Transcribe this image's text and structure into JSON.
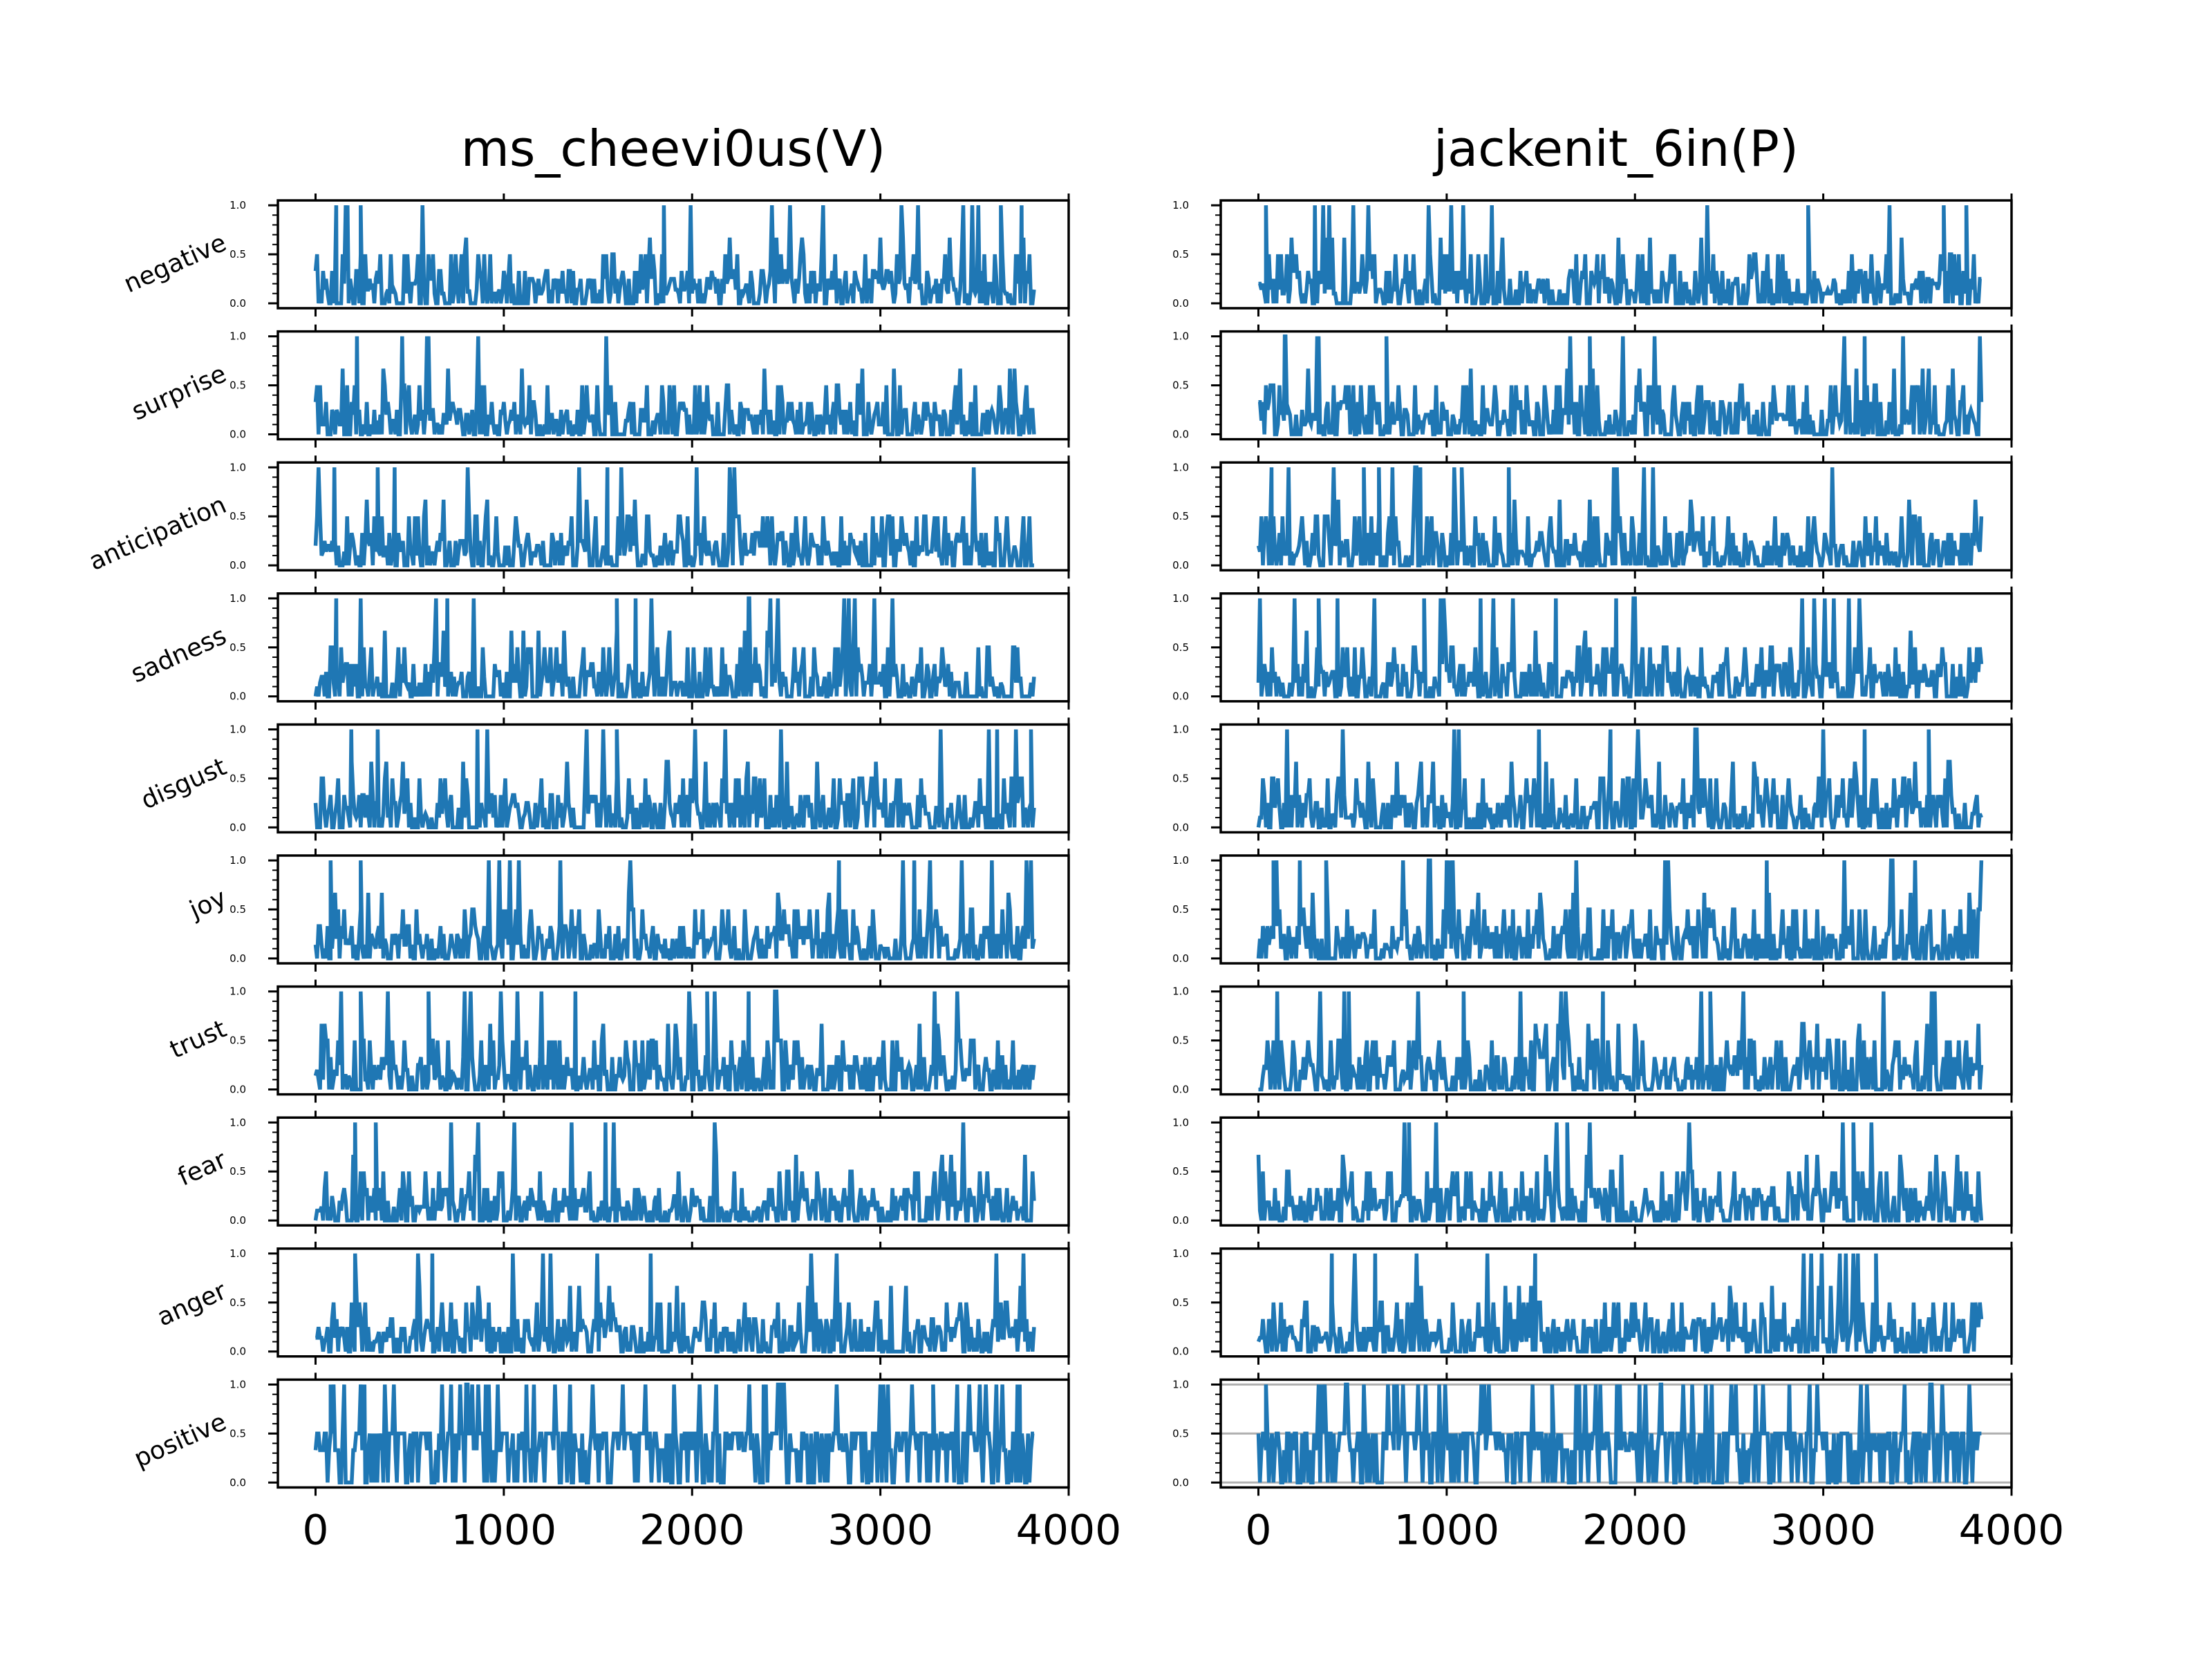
{
  "chart_data": {
    "type": "line",
    "emotions": [
      "negative",
      "surprise",
      "anticipation",
      "sadness",
      "disgust",
      "joy",
      "trust",
      "fear",
      "anger",
      "positive"
    ],
    "ytick_labels": [
      "0.0",
      "0.5",
      "1.0"
    ],
    "xtick_labels": [
      "0",
      "1000",
      "2000",
      "3000",
      "4000"
    ],
    "xlim": [
      -200,
      4000
    ],
    "ylim": [
      -0.05,
      1.05
    ],
    "line_color": "#1f77b4",
    "panels": [
      {
        "title": "ms_cheevi0us(V)",
        "x_range": [
          0,
          3820
        ],
        "spikes": {
          "negative": [
            [
              110,
              1
            ],
            [
              170,
              1
            ],
            [
              240,
              1
            ],
            [
              1850,
              1
            ],
            [
              3640,
              1
            ],
            [
              3750,
              1
            ]
          ],
          "surprise": [
            [
              220,
              1
            ],
            [
              460,
              1
            ],
            [
              600,
              1
            ]
          ],
          "anticipation": [
            [
              100,
              1
            ],
            [
              330,
              1
            ],
            [
              420,
              1
            ],
            [
              1550,
              1
            ]
          ],
          "sadness": [
            [
              110,
              1
            ],
            [
              240,
              1
            ],
            [
              700,
              1
            ],
            [
              1600,
              1
            ],
            [
              1700,
              1
            ],
            [
              2300,
              1
            ]
          ],
          "disgust": [
            [
              190,
              1
            ],
            [
              330,
              1
            ],
            [
              860,
              1
            ],
            [
              1600,
              1
            ],
            [
              3620,
              1
            ],
            [
              3800,
              1
            ]
          ],
          "joy": [
            [
              80,
              1
            ],
            [
              240,
              1
            ],
            [
              1300,
              1
            ],
            [
              2780,
              1
            ],
            [
              3180,
              1
            ]
          ],
          "trust": [
            [
              240,
              1
            ],
            [
              600,
              1
            ],
            [
              1380,
              1
            ],
            [
              2080,
              1
            ],
            [
              2300,
              1
            ]
          ],
          "fear": [
            [
              210,
              1
            ],
            [
              320,
              1
            ],
            [
              1540,
              1
            ]
          ],
          "anger": [
            [
              210,
              1
            ],
            [
              620,
              1
            ],
            [
              1780,
              1
            ]
          ],
          "positive": [
            [
              80,
              1
            ],
            [
              260,
              1
            ],
            [
              2380,
              1
            ],
            [
              3280,
              1
            ],
            [
              3740,
              1
            ]
          ]
        }
      },
      {
        "title": "jackenit_6in(P)",
        "x_range": [
          0,
          3840
        ],
        "spikes": {
          "negative": [
            [
              40,
              1
            ],
            [
              300,
              1
            ],
            [
              2920,
              1
            ],
            [
              3640,
              1
            ],
            [
              3760,
              1
            ]
          ],
          "surprise": [
            [
              140,
              1
            ],
            [
              320,
              1
            ],
            [
              680,
              1
            ],
            [
              1760,
              1
            ],
            [
              3220,
              1
            ]
          ],
          "anticipation": [
            [
              70,
              1
            ],
            [
              560,
              1
            ],
            [
              640,
              1
            ],
            [
              860,
              1
            ],
            [
              1080,
              1
            ],
            [
              1330,
              1
            ]
          ],
          "sadness": [
            [
              320,
              1
            ],
            [
              420,
              1
            ],
            [
              880,
              1
            ],
            [
              1180,
              1
            ],
            [
              1580,
              1
            ],
            [
              1900,
              1
            ]
          ],
          "disgust": [
            [
              1490,
              1
            ],
            [
              1870,
              1
            ],
            [
              3220,
              1
            ],
            [
              3560,
              1
            ]
          ],
          "joy": [
            [
              80,
              1
            ],
            [
              220,
              1
            ],
            [
              360,
              1
            ],
            [
              1020,
              1
            ],
            [
              2700,
              1
            ]
          ],
          "trust": [
            [
              100,
              1
            ],
            [
              480,
              1
            ],
            [
              1090,
              1
            ],
            [
              1830,
              1
            ],
            [
              2400,
              1
            ]
          ],
          "fear": [
            [
              800,
              1
            ],
            [
              1640,
              1
            ],
            [
              3160,
              1
            ]
          ],
          "anger": [
            [
              390,
              1
            ],
            [
              620,
              1
            ],
            [
              1470,
              1
            ],
            [
              3280,
              1
            ]
          ],
          "positive": [
            [
              40,
              1
            ],
            [
              720,
              1
            ],
            [
              1560,
              1
            ],
            [
              2140,
              1
            ],
            [
              2820,
              1
            ]
          ]
        }
      }
    ]
  }
}
